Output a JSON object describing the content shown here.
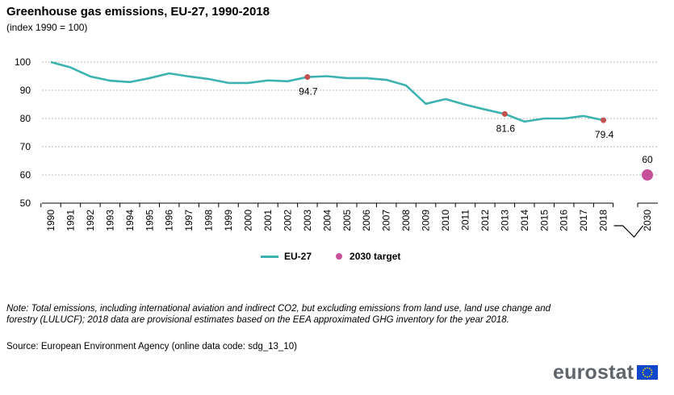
{
  "title": "Greenhouse gas emissions, EU-27, 1990-2018",
  "subtitle": "(index 1990 = 100)",
  "chart_data": {
    "type": "line",
    "x_categories": [
      "1990",
      "1991",
      "1992",
      "1993",
      "1994",
      "1995",
      "1996",
      "1997",
      "1998",
      "1999",
      "2000",
      "2001",
      "2002",
      "2003",
      "2004",
      "2005",
      "2006",
      "2007",
      "2008",
      "2009",
      "2010",
      "2011",
      "2012",
      "2013",
      "2014",
      "2015",
      "2016",
      "2017",
      "2018",
      "2030"
    ],
    "y_ticks": [
      "100",
      "90",
      "80",
      "70",
      "60",
      "50"
    ],
    "ylim": [
      50,
      105
    ],
    "grid": "horizontal dashed",
    "axis_break": "between 2018 and 2030",
    "series": [
      {
        "name": "EU-27",
        "color": "#3cb3b0",
        "x": [
          "1990",
          "1991",
          "1992",
          "1993",
          "1994",
          "1995",
          "1996",
          "1997",
          "1998",
          "1999",
          "2000",
          "2001",
          "2002",
          "2003",
          "2004",
          "2005",
          "2006",
          "2007",
          "2008",
          "2009",
          "2010",
          "2011",
          "2012",
          "2013",
          "2014",
          "2015",
          "2016",
          "2017",
          "2018"
        ],
        "values": [
          100,
          98.1,
          94.9,
          93.4,
          92.9,
          94.3,
          96.0,
          94.9,
          94.0,
          92.6,
          92.6,
          93.5,
          93.2,
          94.7,
          95.0,
          94.3,
          94.3,
          93.7,
          91.7,
          85.2,
          86.9,
          84.9,
          83.2,
          81.6,
          78.9,
          80.0,
          80.0,
          80.9,
          79.4
        ],
        "markers": [
          {
            "x": "2003",
            "value": 94.7,
            "label": "94.7"
          },
          {
            "x": "2013",
            "value": 81.6,
            "label": "81.6"
          },
          {
            "x": "2018",
            "value": 79.4,
            "label": "79.4"
          }
        ],
        "marker_color": "#c3514f"
      },
      {
        "name": "2030 target",
        "color": "#c7509b",
        "x": [
          "2030"
        ],
        "values": [
          60
        ],
        "label": "60"
      }
    ],
    "legend_position": "bottom-center"
  },
  "legend": {
    "items": [
      {
        "label": "EU-27",
        "color": "#3cb3b0"
      },
      {
        "label": "2030 target",
        "color": "#c7509b"
      }
    ]
  },
  "note": "Note: Total emissions, including international aviation and indirect CO2, but excluding emissions from land use, land use change and forestry (LULUCF); 2018 data are provisional estimates based on the EEA approximated GHG inventory for the year 2018.",
  "source": "Source: European Environment Agency (online data code: sdg_13_10)",
  "logo": {
    "text": "eurostat",
    "flag_color": "#0e47cb",
    "star_color": "#ffde00"
  }
}
